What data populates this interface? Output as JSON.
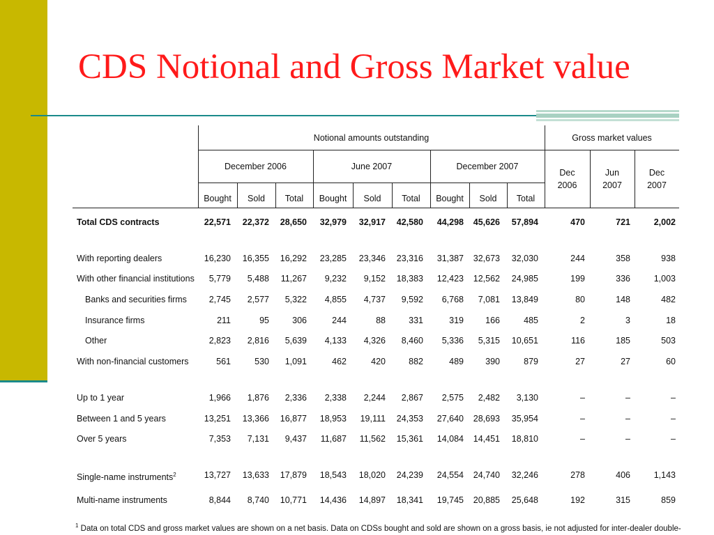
{
  "title": "CDS Notional and Gross Market value",
  "table": {
    "group_headers": {
      "notional": "Notional amounts outstanding",
      "gross": "Gross market values"
    },
    "period_headers": [
      "December 2006",
      "June 2007",
      "December 2007"
    ],
    "sub_headers": [
      "Bought",
      "Sold",
      "Total"
    ],
    "gross_headers": [
      {
        "line1": "Dec",
        "line2": "2006"
      },
      {
        "line1": "Jun",
        "line2": "2007"
      },
      {
        "line1": "Dec",
        "line2": "2007"
      }
    ],
    "rows": [
      {
        "label": "Total CDS contracts",
        "bold": true,
        "indent": false,
        "values": [
          "22,571",
          "22,372",
          "28,650",
          "32,979",
          "32,917",
          "42,580",
          "44,298",
          "45,626",
          "57,894",
          "470",
          "721",
          "2,002"
        ]
      },
      {
        "label": "With reporting dealers",
        "bold": false,
        "indent": false,
        "values": [
          "16,230",
          "16,355",
          "16,292",
          "23,285",
          "23,346",
          "23,316",
          "31,387",
          "32,673",
          "32,030",
          "244",
          "358",
          "938"
        ]
      },
      {
        "label": "With other financial institutions",
        "bold": false,
        "indent": false,
        "values": [
          "5,779",
          "5,488",
          "11,267",
          "9,232",
          "9,152",
          "18,383",
          "12,423",
          "12,562",
          "24,985",
          "199",
          "336",
          "1,003"
        ]
      },
      {
        "label": "Banks and securities firms",
        "bold": false,
        "indent": true,
        "values": [
          "2,745",
          "2,577",
          "5,322",
          "4,855",
          "4,737",
          "9,592",
          "6,768",
          "7,081",
          "13,849",
          "80",
          "148",
          "482"
        ]
      },
      {
        "label": "Insurance firms",
        "bold": false,
        "indent": true,
        "values": [
          "211",
          "95",
          "306",
          "244",
          "88",
          "331",
          "319",
          "166",
          "485",
          "2",
          "3",
          "18"
        ]
      },
      {
        "label": "Other",
        "bold": false,
        "indent": true,
        "values": [
          "2,823",
          "2,816",
          "5,639",
          "4,133",
          "4,326",
          "8,460",
          "5,336",
          "5,315",
          "10,651",
          "116",
          "185",
          "503"
        ]
      },
      {
        "label": "With non-financial customers",
        "bold": false,
        "indent": false,
        "values": [
          "561",
          "530",
          "1,091",
          "462",
          "420",
          "882",
          "489",
          "390",
          "879",
          "27",
          "27",
          "60"
        ]
      },
      {
        "label": "Up to 1 year",
        "bold": false,
        "indent": false,
        "values": [
          "1,966",
          "1,876",
          "2,336",
          "2,338",
          "2,244",
          "2,867",
          "2,575",
          "2,482",
          "3,130",
          "–",
          "–",
          "–"
        ]
      },
      {
        "label": "Between 1 and 5 years",
        "bold": false,
        "indent": false,
        "values": [
          "13,251",
          "13,366",
          "16,877",
          "18,953",
          "19,111",
          "24,353",
          "27,640",
          "28,693",
          "35,954",
          "–",
          "–",
          "–"
        ]
      },
      {
        "label": "Over 5 years",
        "bold": false,
        "indent": false,
        "values": [
          "7,353",
          "7,131",
          "9,437",
          "11,687",
          "11,562",
          "15,361",
          "14,084",
          "14,451",
          "18,810",
          "–",
          "–",
          "–"
        ]
      },
      {
        "label": "Single-name instruments",
        "sup": "2",
        "bold": false,
        "indent": false,
        "values": [
          "13,727",
          "13,633",
          "17,879",
          "18,543",
          "18,020",
          "24,239",
          "24,554",
          "24,740",
          "32,246",
          "278",
          "406",
          "1,143"
        ]
      },
      {
        "label": "Multi-name instruments",
        "bold": false,
        "indent": false,
        "values": [
          "8,844",
          "8,740",
          "10,771",
          "14,436",
          "14,897",
          "18,341",
          "19,745",
          "20,885",
          "25,648",
          "192",
          "315",
          "859"
        ]
      }
    ]
  },
  "footnote": {
    "marker": "1",
    "text": "Data on total CDS and gross market values are shown on a net basis. Data on CDSs bought and sold are shown on a gross basis, ie not adjusted for inter-dealer double-"
  }
}
